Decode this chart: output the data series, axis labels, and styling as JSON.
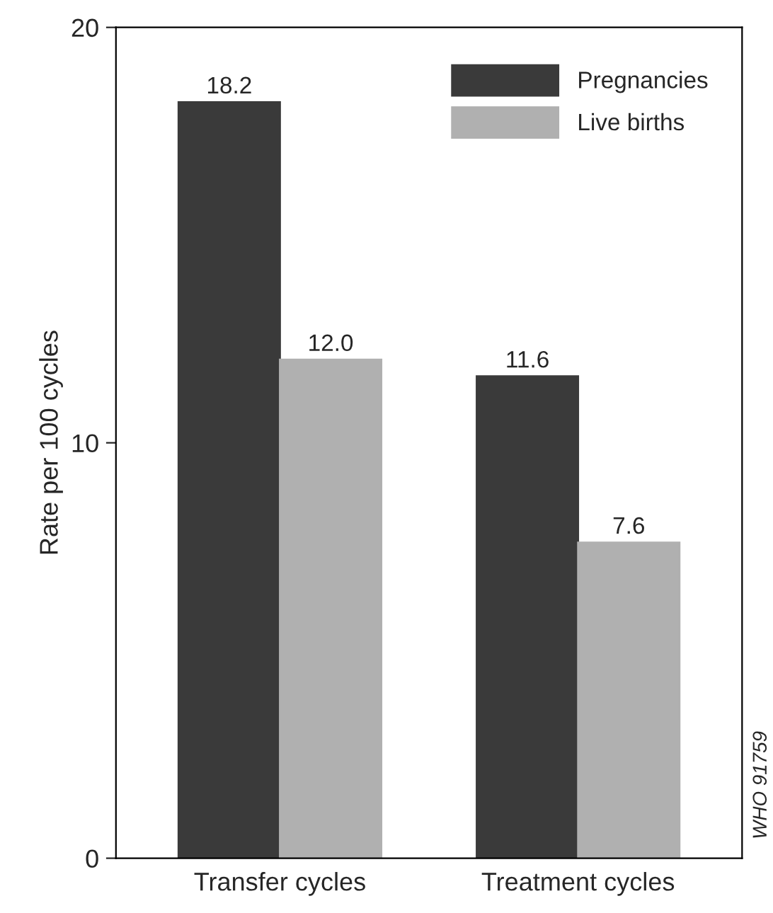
{
  "chart_data": {
    "type": "bar",
    "ylabel": "Rate per 100 cycles",
    "categories": [
      "Transfer cycles",
      "Treatment cycles"
    ],
    "series": [
      {
        "name": "Pregnancies",
        "color": "#3a3a3a",
        "values": [
          18.2,
          11.6
        ],
        "value_labels": [
          "18.2",
          "11.6"
        ]
      },
      {
        "name": "Live births",
        "color": "#b0b0b0",
        "values": [
          12.0,
          7.6
        ],
        "value_labels": [
          "12.0",
          "7.6"
        ]
      }
    ],
    "ylim": [
      0,
      20
    ],
    "yticks": [
      0,
      10,
      20
    ],
    "legend": "top right",
    "grid": false,
    "annotations": [
      "WHO 91759"
    ]
  }
}
